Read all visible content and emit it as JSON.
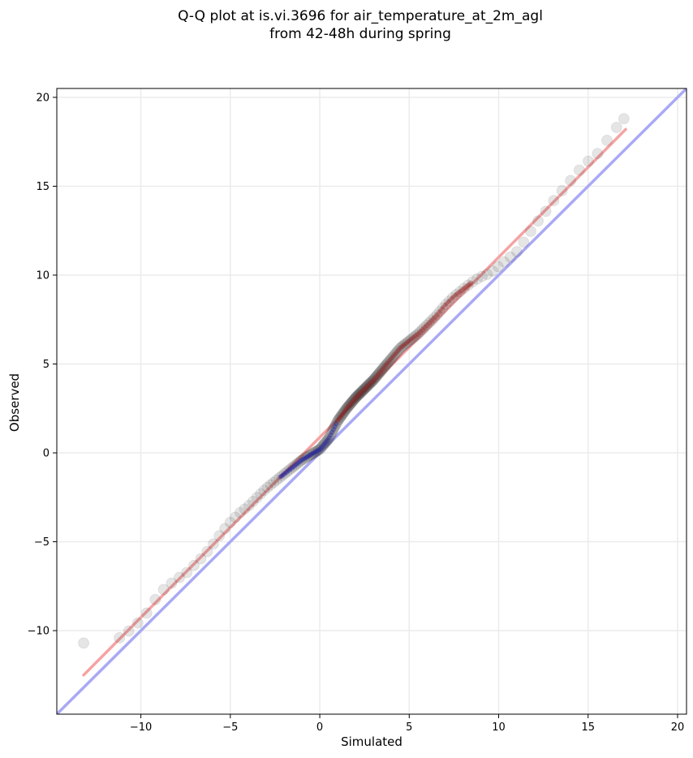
{
  "title_line1": "Q-Q plot at is.vi.3696 for air_temperature_at_2m_agl",
  "title_line2": "from 42-48h during spring",
  "chart_data": {
    "type": "scatter",
    "title": "Q-Q plot at is.vi.3696 for air_temperature_at_2m_agl from 42-48h during spring",
    "xlabel": "Simulated",
    "ylabel": "Observed",
    "xlim": [
      -14.7,
      20.5
    ],
    "ylim": [
      -14.7,
      20.5
    ],
    "xticks": [
      -10,
      -5,
      0,
      5,
      10,
      15,
      20
    ],
    "yticks": [
      -10,
      -5,
      0,
      5,
      10,
      15,
      20
    ],
    "xtick_labels": [
      "−10",
      "−5",
      "0",
      "5",
      "10",
      "15",
      "20"
    ],
    "ytick_labels": [
      "−10",
      "−5",
      "0",
      "5",
      "10",
      "15",
      "20"
    ],
    "grid": true,
    "reference_line": {
      "x": [
        -14.7,
        20.5
      ],
      "y": [
        -14.7,
        20.5
      ],
      "color": "#a9a9f5"
    },
    "fit_line": {
      "x": [
        -13.2,
        17.1
      ],
      "y": [
        -12.5,
        18.2
      ],
      "color": "#f5a3a3"
    },
    "quantile_curve": {
      "x": [
        -13.2,
        -11.2,
        -10.5,
        -10.0,
        -9.5,
        -9.0,
        -8.5,
        -8.0,
        -7.5,
        -7.0,
        -6.5,
        -6.0,
        -5.5,
        -5.0,
        -4.5,
        -4.0,
        -3.5,
        -3.0,
        -2.5,
        -2.0,
        -1.5,
        -1.0,
        -0.5,
        0.0,
        0.5,
        1.0,
        1.5,
        2.0,
        2.5,
        3.0,
        3.5,
        4.0,
        4.5,
        5.0,
        5.5,
        6.0,
        6.5,
        7.0,
        7.5,
        8.0,
        8.5,
        9.0,
        9.5,
        10.0,
        10.5,
        11.0,
        11.5,
        12.0,
        12.5,
        13.0,
        13.5,
        14.0,
        14.5,
        15.0,
        15.5,
        16.0,
        16.5,
        17.0
      ],
      "y": [
        -10.7,
        -10.4,
        -9.9,
        -9.4,
        -8.8,
        -7.9,
        -7.5,
        -7.1,
        -6.8,
        -6.3,
        -5.8,
        -5.2,
        -4.5,
        -3.9,
        -3.4,
        -3.0,
        -2.5,
        -2.0,
        -1.6,
        -1.2,
        -0.8,
        -0.4,
        -0.1,
        0.2,
        0.8,
        1.8,
        2.5,
        3.1,
        3.6,
        4.1,
        4.7,
        5.3,
        5.9,
        6.3,
        6.7,
        7.2,
        7.7,
        8.3,
        8.8,
        9.2,
        9.6,
        9.9,
        10.1,
        10.5,
        10.9,
        11.3,
        12.0,
        12.8,
        13.4,
        14.1,
        14.7,
        15.3,
        15.9,
        16.4,
        16.8,
        17.5,
        18.2,
        18.8
      ]
    }
  }
}
